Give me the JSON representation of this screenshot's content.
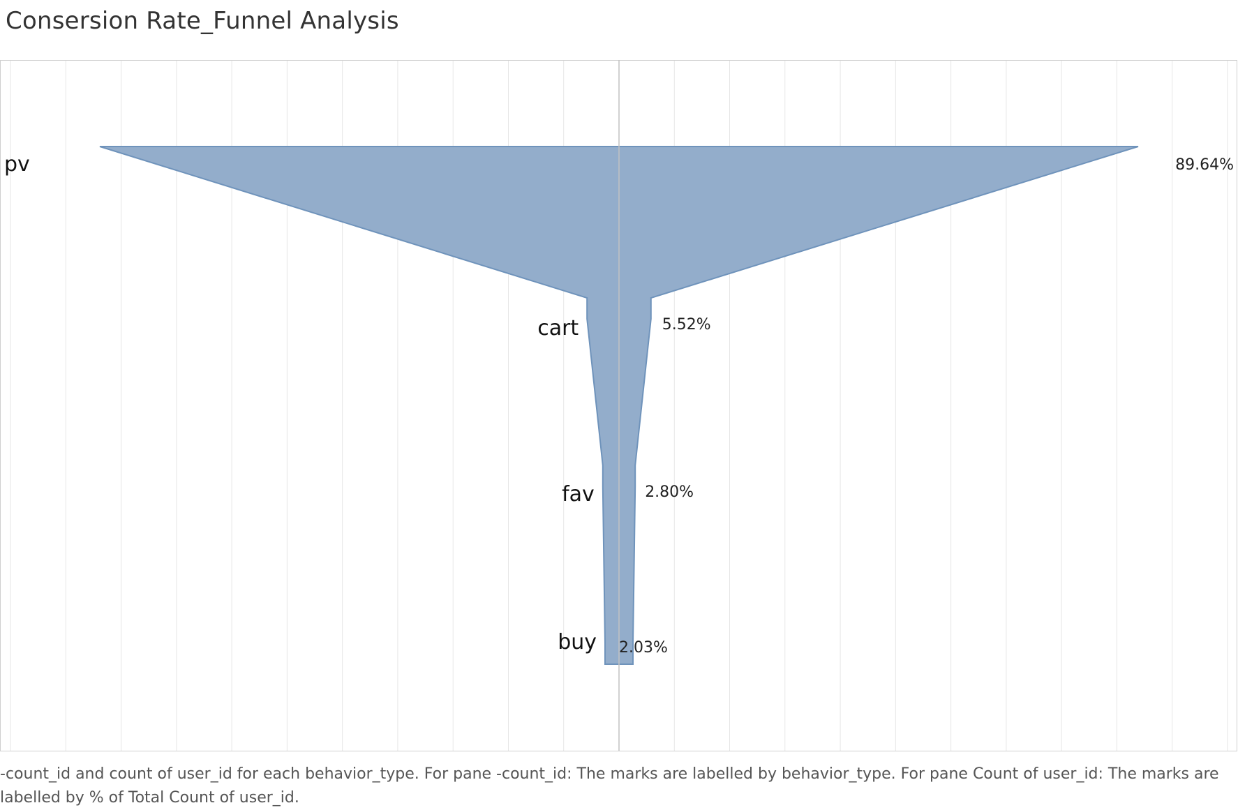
{
  "title": "Consersion Rate_Funnel Analysis",
  "caption": "-count_id and count of user_id for each behavior_type.  For pane -count_id:  The marks are labelled by behavior_type.  For pane Count of user_id:  The marks are labelled by % of Total Count of user_id.",
  "colors": {
    "funnel_fill": "#93adcb",
    "funnel_stroke": "#6f93bb",
    "grid": "#e6e6e6",
    "center_line": "#c2c2c2",
    "frame": "#cfcfcf"
  },
  "chart_data": {
    "type": "area",
    "categories": [
      "pv",
      "cart",
      "fav",
      "buy"
    ],
    "values": [
      89.64,
      5.52,
      2.8,
      2.03
    ],
    "value_labels": [
      "89.64%",
      "5.52%",
      "2.80%",
      "2.03%"
    ],
    "unit": "% of Total Count of user_id",
    "layout": "symmetric funnel, mirrored around center axis",
    "xlim": [
      -94.0,
      94.0
    ],
    "grid": true,
    "gridline_step": 9.55
  }
}
